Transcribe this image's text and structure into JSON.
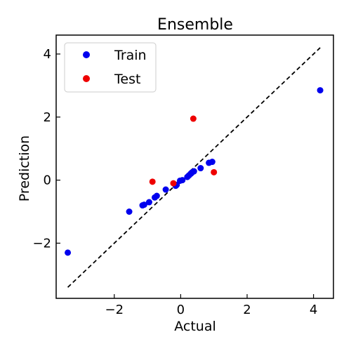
{
  "chart_data": {
    "type": "scatter",
    "title": "Ensemble",
    "xlabel": "Actual",
    "ylabel": "Prediction",
    "xlim": [
      -3.75,
      4.6
    ],
    "ylim": [
      -3.75,
      4.6
    ],
    "xticks": [
      -2,
      0,
      2,
      4
    ],
    "yticks": [
      -2,
      0,
      2,
      4
    ],
    "tick_labels": [
      "−2",
      "0",
      "2",
      "4"
    ],
    "grid": false,
    "legend_position": "top-left",
    "identity_line": {
      "from": [
        -3.4,
        -3.4
      ],
      "to": [
        4.2,
        4.2
      ],
      "style": "dashed",
      "color": "#000000"
    },
    "series": [
      {
        "name": "Train",
        "color": "#0000ee",
        "points": [
          [
            -3.4,
            -2.3
          ],
          [
            -1.55,
            -1.0
          ],
          [
            -1.15,
            -0.8
          ],
          [
            -1.1,
            -0.78
          ],
          [
            -0.95,
            -0.7
          ],
          [
            -0.78,
            -0.55
          ],
          [
            -0.72,
            -0.5
          ],
          [
            -0.45,
            -0.3
          ],
          [
            -0.15,
            -0.18
          ],
          [
            -0.12,
            -0.15
          ],
          [
            -0.02,
            -0.02
          ],
          [
            0.05,
            0.0
          ],
          [
            0.2,
            0.1
          ],
          [
            0.25,
            0.15
          ],
          [
            0.3,
            0.2
          ],
          [
            0.32,
            0.22
          ],
          [
            0.35,
            0.25
          ],
          [
            0.4,
            0.28
          ],
          [
            0.6,
            0.38
          ],
          [
            0.85,
            0.55
          ],
          [
            0.95,
            0.58
          ],
          [
            4.2,
            2.85
          ]
        ]
      },
      {
        "name": "Test",
        "color": "#ee0000",
        "points": [
          [
            -0.85,
            -0.05
          ],
          [
            -0.22,
            -0.1
          ],
          [
            0.38,
            1.95
          ],
          [
            1.0,
            0.25
          ]
        ]
      }
    ]
  }
}
